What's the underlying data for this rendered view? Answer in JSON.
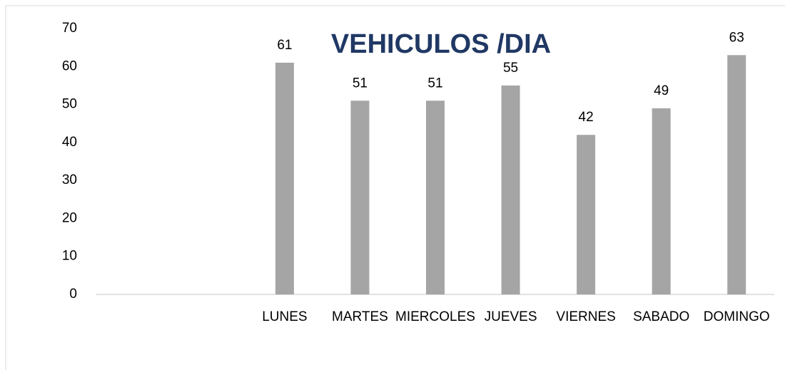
{
  "chart_data": {
    "type": "bar",
    "title": "VEHICULOS /DIA",
    "categories": [
      null,
      null,
      "LUNES",
      "MARTES",
      "MIERCOLES",
      "JUEVES",
      "VIERNES",
      "SABADO",
      "DOMINGO"
    ],
    "values": [
      null,
      null,
      61,
      51,
      51,
      55,
      42,
      49,
      63
    ],
    "color": "#a5a5a5",
    "title_color": "#203864",
    "ylim": [
      0,
      70
    ],
    "yticks": [
      0,
      10,
      20,
      30,
      40,
      50,
      60,
      70
    ],
    "grid": false
  }
}
